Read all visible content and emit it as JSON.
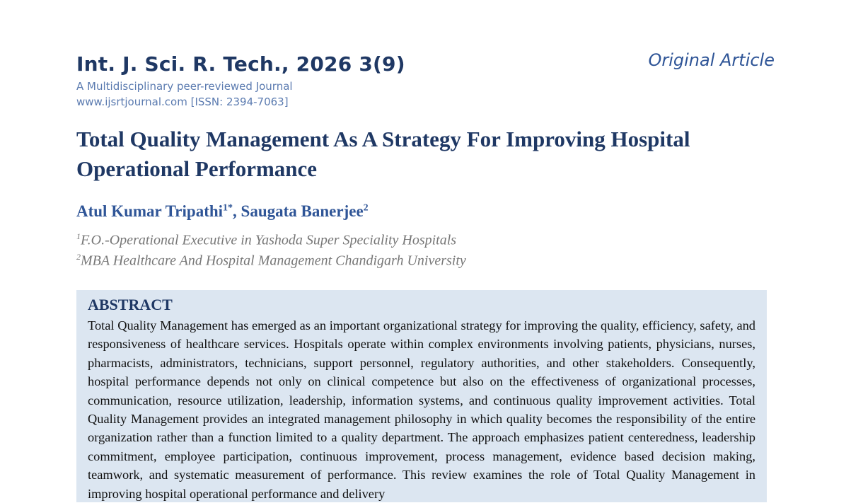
{
  "header": {
    "journal": "Int. J. Sci. R. Tech., 2026 3(9)",
    "tagline": "A Multidisciplinary peer-reviewed Journal",
    "website": "www.ijsrtjournal.com [ISSN: 2394-7063]",
    "article_type": "Original Article"
  },
  "title": "Total Quality Management As A Strategy For Improving Hospital Operational Performance",
  "authors": [
    {
      "name": "Atul Kumar Tripathi",
      "mark": "1*"
    },
    {
      "name": "Saugata Banerjee",
      "mark": "2"
    }
  ],
  "author_separator": ", ",
  "affiliations": [
    {
      "number": "1",
      "text": "F.O.-Operational Executive in Yashoda Super Speciality Hospitals"
    },
    {
      "number": "2",
      "text": "MBA Healthcare And Hospital Management Chandigarh University"
    }
  ],
  "abstract": {
    "heading": "ABSTRACT",
    "text": "Total Quality Management has emerged as an important organizational strategy for improving the quality, efficiency, safety, and responsiveness of healthcare services. Hospitals operate within complex environments involving patients, physicians, nurses, pharmacists, administrators, technicians, support personnel, regulatory authorities, and other stakeholders. Consequently, hospital performance depends not only on clinical competence but also on the effectiveness of organizational processes, communication, resource utilization, leadership, information systems, and continuous quality improvement activities. Total Quality Management provides an integrated management philosophy in which quality becomes the responsibility of the entire organization rather than a function limited to a quality department. The approach emphasizes patient centeredness, leadership commitment, employee participation, continuous improvement, process management, evidence based decision making, teamwork, and systematic measurement of performance. This review examines the role of Total Quality Management in improving hospital operational performance and delivery"
  }
}
